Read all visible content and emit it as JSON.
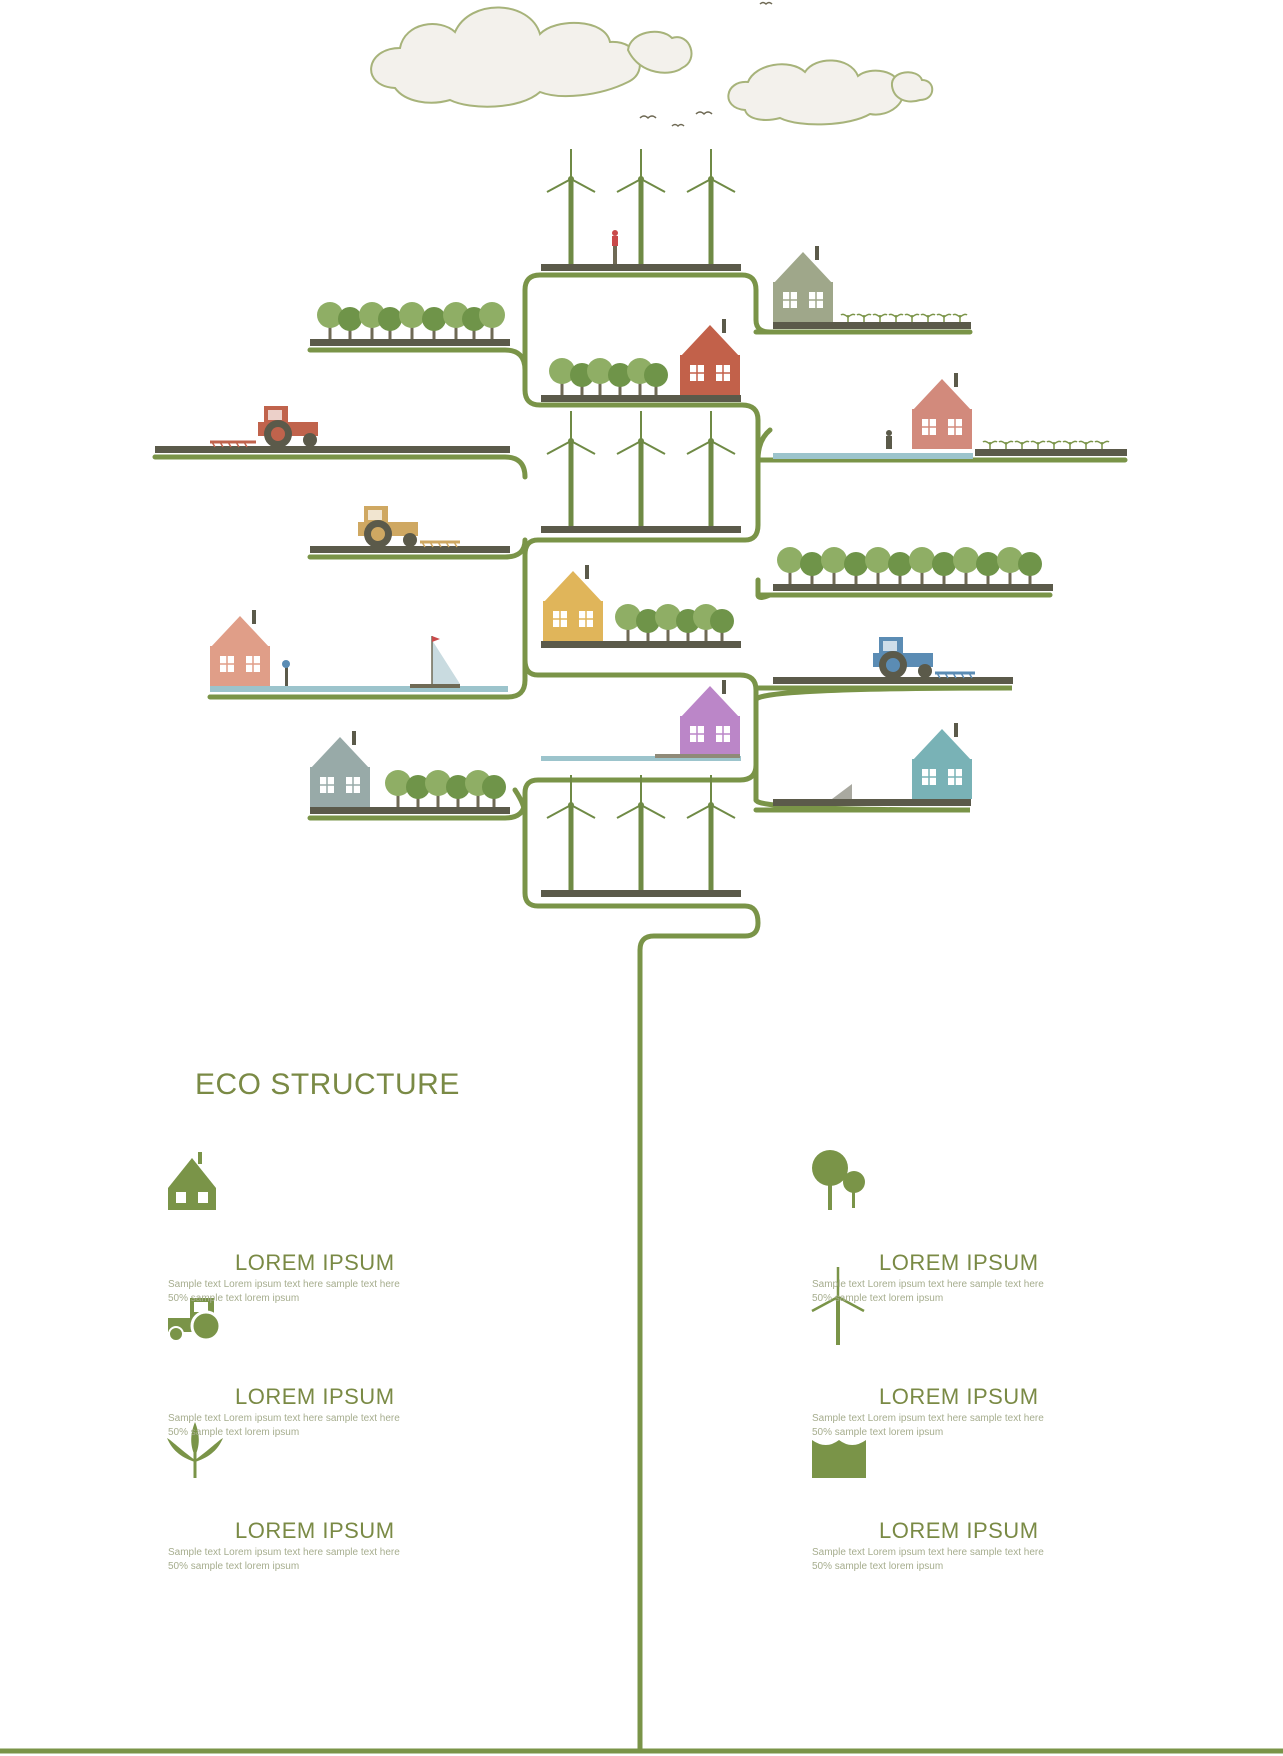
{
  "title": "ECO STRUCTURE",
  "legend": [
    {
      "icon": "house-icon",
      "label": "LOREM IPSUM",
      "line1": "Sample text  Lorem ipsum  text here  sample text here",
      "line2": "50%  sample text  lorem ipsum"
    },
    {
      "icon": "tree-icon",
      "label": "LOREM IPSUM",
      "line1": "Sample text  Lorem ipsum  text here  sample text here",
      "line2": "50%  sample text  lorem ipsum"
    },
    {
      "icon": "tractor-icon",
      "label": "LOREM IPSUM",
      "line1": "Sample text  Lorem ipsum  text here  sample text here",
      "line2": "50%  sample text  lorem ipsum"
    },
    {
      "icon": "wind-turbine-icon",
      "label": "LOREM IPSUM",
      "line1": "Sample text  Lorem ipsum  text here  sample text here",
      "line2": "50%  sample text  lorem ipsum"
    },
    {
      "icon": "sprout-icon",
      "label": "LOREM IPSUM",
      "line1": "Sample text  Lorem ipsum  text here  sample text here",
      "line2": "50%  sample text  lorem ipsum"
    },
    {
      "icon": "water-icon",
      "label": "LOREM IPSUM",
      "line1": "Sample text  Lorem ipsum  text here  sample text here",
      "line2": "50%  sample text  lorem ipsum"
    }
  ],
  "colors": {
    "branch": "#7a9448",
    "ground": "#5b5a4a",
    "cloud_fill": "#f3f1ec",
    "cloud_stroke": "#a7b37a",
    "tree": "#8fae65",
    "tree_dark": "#6f9449",
    "turbine": "#6f8a45",
    "water": "#9cc4cc",
    "house_red": "#c2614a",
    "house_pink": "#d28a7c",
    "house_salmon": "#e09e88",
    "house_yellow": "#e0b55a",
    "house_purple": "#bb86c8",
    "house_teal": "#79b2b6",
    "house_gray": "#98aaa8",
    "house_olive": "#9fa78a",
    "tractor_red": "#c0634c",
    "tractor_yellow": "#cfa862",
    "tractor_blue": "#5b8cb4"
  }
}
